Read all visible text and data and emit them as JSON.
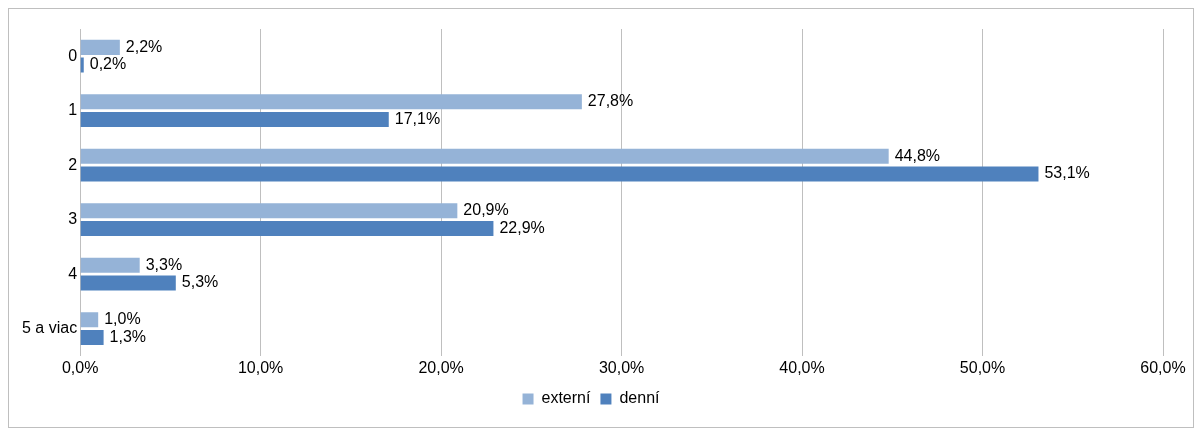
{
  "chart_data": {
    "type": "bar",
    "orientation": "horizontal",
    "categories": [
      "0",
      "1",
      "2",
      "3",
      "4",
      "5 a viac"
    ],
    "series": [
      {
        "name": "externí",
        "color": "#95b3d7",
        "values": [
          2.2,
          27.8,
          44.8,
          20.9,
          3.3,
          1.0
        ],
        "value_labels": [
          "2,2%",
          "27,8%",
          "44,8%",
          "20,9%",
          "3,3%",
          "1,0%"
        ]
      },
      {
        "name": "denní",
        "color": "#4f81bd",
        "values": [
          0.2,
          17.1,
          53.1,
          22.9,
          5.3,
          1.3
        ],
        "value_labels": [
          "0,2%",
          "17,1%",
          "53,1%",
          "22,9%",
          "5,3%",
          "1,3%"
        ]
      }
    ],
    "xlim": [
      0,
      60
    ],
    "xticks": [
      {
        "value": 0,
        "label": "0,0%"
      },
      {
        "value": 10,
        "label": "10,0%"
      },
      {
        "value": 20,
        "label": "20,0%"
      },
      {
        "value": 30,
        "label": "30,0%"
      },
      {
        "value": 40,
        "label": "40,0%"
      },
      {
        "value": 50,
        "label": "50,0%"
      },
      {
        "value": 60,
        "label": "60,0%"
      }
    ],
    "grid": "x",
    "legend": "bottom"
  }
}
